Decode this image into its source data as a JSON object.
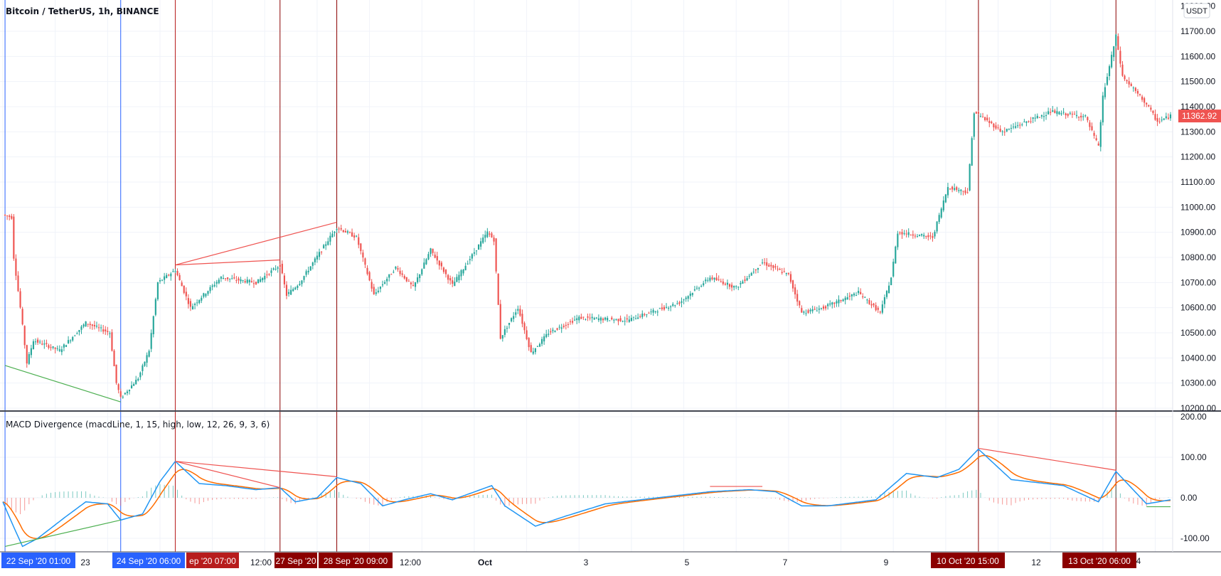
{
  "main_pane": {
    "symbol_title": "Bitcoin / TetherUS, 1h, BINANCE",
    "currency_badge": "USDT",
    "last_price_label": "11362.92",
    "last_price": 11362.92,
    "colors": {
      "up": "#26a69a",
      "down": "#ef5350",
      "grid": "#f0f3fa",
      "axis_text": "#131722",
      "price_tag": "#ef5350"
    }
  },
  "indicator_pane": {
    "title": "MACD Divergence (macdLine, 1, 15, high, low, 12, 26, 9, 3, 6)",
    "colors": {
      "macd": "#2196f3",
      "signal": "#ff6d00",
      "hist_up": "#26a69a",
      "hist_down": "#ef5350"
    }
  },
  "time_axis": {
    "ticks": [
      "23",
      "12:00",
      "12:00",
      "Oct",
      "3",
      "5",
      "7",
      "9",
      "12"
    ],
    "highlight_labels": [
      {
        "text": "22 Sep '20   01:00",
        "color": "#2962ff"
      },
      {
        "text": "24 Sep '20   06:00",
        "color": "#2962ff"
      },
      {
        "text": "ep '20   07:00",
        "color": "#b71c1c"
      },
      {
        "text": "27 Sep '20",
        "color": "#8b0000"
      },
      {
        "text": "28 Sep '20   09:00",
        "color": "#8b0000"
      },
      {
        "text": "10 Oct '20   15:00",
        "color": "#8b0000"
      },
      {
        "text": "13 Oct '20   06:00",
        "color": "#8b0000"
      },
      {
        "text": "4",
        "color": "none"
      }
    ]
  },
  "chart_data": [
    {
      "type": "candlestick",
      "title": "Bitcoin / TetherUS, 1h, BINANCE",
      "y_unit": "USDT",
      "ylim": [
        10200,
        11800
      ],
      "y_ticks": [
        "10200.00",
        "10300.00",
        "10400.00",
        "10500.00",
        "10600.00",
        "10700.00",
        "10800.00",
        "10900.00",
        "11000.00",
        "11100.00",
        "11200.00",
        "11300.00",
        "11400.00",
        "11500.00",
        "11600.00",
        "11700.00"
      ],
      "x_range": [
        "2020-09-22T00:00",
        "2020-10-14T07:00"
      ],
      "price_path_anchors": [
        {
          "t": "2020-09-22T00:00",
          "price": 10970
        },
        {
          "t": "2020-09-22T04:00",
          "price": 10960
        },
        {
          "t": "2020-09-22T05:00",
          "price": 10800
        },
        {
          "t": "2020-09-22T08:00",
          "price": 10600
        },
        {
          "t": "2020-09-22T11:00",
          "price": 10380
        },
        {
          "t": "2020-09-22T14:00",
          "price": 10470
        },
        {
          "t": "2020-09-23T02:00",
          "price": 10430
        },
        {
          "t": "2020-09-23T14:00",
          "price": 10540
        },
        {
          "t": "2020-09-24T01:00",
          "price": 10500
        },
        {
          "t": "2020-09-24T04:00",
          "price": 10300
        },
        {
          "t": "2020-09-24T06:00",
          "price": 10240
        },
        {
          "t": "2020-09-24T14:00",
          "price": 10320
        },
        {
          "t": "2020-09-24T19:00",
          "price": 10430
        },
        {
          "t": "2020-09-24T23:00",
          "price": 10700
        },
        {
          "t": "2020-09-25T07:00",
          "price": 10750
        },
        {
          "t": "2020-09-25T14:00",
          "price": 10600
        },
        {
          "t": "2020-09-26T04:00",
          "price": 10720
        },
        {
          "t": "2020-09-26T20:00",
          "price": 10700
        },
        {
          "t": "2020-09-27T07:00",
          "price": 10770
        },
        {
          "t": "2020-09-27T10:00",
          "price": 10650
        },
        {
          "t": "2020-09-27T16:00",
          "price": 10700
        },
        {
          "t": "2020-09-28T09:00",
          "price": 10920
        },
        {
          "t": "2020-09-28T18:00",
          "price": 10880
        },
        {
          "t": "2020-09-29T02:00",
          "price": 10650
        },
        {
          "t": "2020-09-29T12:00",
          "price": 10760
        },
        {
          "t": "2020-09-29T20:00",
          "price": 10680
        },
        {
          "t": "2020-09-30T04:00",
          "price": 10830
        },
        {
          "t": "2020-09-30T14:00",
          "price": 10690
        },
        {
          "t": "2020-10-01T06:00",
          "price": 10900
        },
        {
          "t": "2020-10-01T09:00",
          "price": 10870
        },
        {
          "t": "2020-10-01T12:00",
          "price": 10480
        },
        {
          "t": "2020-10-01T20:00",
          "price": 10600
        },
        {
          "t": "2020-10-02T02:00",
          "price": 10420
        },
        {
          "t": "2020-10-02T10:00",
          "price": 10500
        },
        {
          "t": "2020-10-03T00:00",
          "price": 10560
        },
        {
          "t": "2020-10-03T22:00",
          "price": 10550
        },
        {
          "t": "2020-10-04T22:00",
          "price": 10620
        },
        {
          "t": "2020-10-05T12:00",
          "price": 10720
        },
        {
          "t": "2020-10-06T00:00",
          "price": 10680
        },
        {
          "t": "2020-10-06T12:00",
          "price": 10780
        },
        {
          "t": "2020-10-07T00:00",
          "price": 10730
        },
        {
          "t": "2020-10-07T06:00",
          "price": 10580
        },
        {
          "t": "2020-10-07T16:00",
          "price": 10600
        },
        {
          "t": "2020-10-08T08:00",
          "price": 10660
        },
        {
          "t": "2020-10-08T18:00",
          "price": 10580
        },
        {
          "t": "2020-10-08T23:00",
          "price": 10720
        },
        {
          "t": "2020-10-09T02:00",
          "price": 10900
        },
        {
          "t": "2020-10-09T18:00",
          "price": 10880
        },
        {
          "t": "2020-10-10T01:00",
          "price": 11080
        },
        {
          "t": "2020-10-10T10:00",
          "price": 11060
        },
        {
          "t": "2020-10-10T13:00",
          "price": 11380
        },
        {
          "t": "2020-10-11T02:00",
          "price": 11300
        },
        {
          "t": "2020-10-12T00:00",
          "price": 11380
        },
        {
          "t": "2020-10-12T16:00",
          "price": 11360
        },
        {
          "t": "2020-10-12T22:00",
          "price": 11240
        },
        {
          "t": "2020-10-13T00:00",
          "price": 11440
        },
        {
          "t": "2020-10-13T06:00",
          "price": 11680
        },
        {
          "t": "2020-10-13T09:00",
          "price": 11520
        },
        {
          "t": "2020-10-13T20:00",
          "price": 11410
        },
        {
          "t": "2020-10-14T01:00",
          "price": 11340
        },
        {
          "t": "2020-10-14T07:00",
          "price": 11362.92
        }
      ],
      "divergence_lines": [
        {
          "color": "#4caf50",
          "from": {
            "t": "2020-09-22T01:00",
            "price": 10370
          },
          "to": {
            "t": "2020-09-24T06:00",
            "price": 10225
          }
        },
        {
          "color": "#ef5350",
          "from": {
            "t": "2020-09-25T07:00",
            "price": 10770
          },
          "to": {
            "t": "2020-09-28T09:00",
            "price": 10940
          }
        },
        {
          "color": "#ef5350",
          "from": {
            "t": "2020-09-25T07:00",
            "price": 10770
          },
          "to": {
            "t": "2020-09-27T07:00",
            "price": 10790
          }
        }
      ],
      "marker_lines": [
        {
          "t": "2020-09-22T01:00",
          "color": "#2962ff"
        },
        {
          "t": "2020-09-24T06:00",
          "color": "#2962ff"
        },
        {
          "t": "2020-09-25T07:00",
          "color": "#b71c1c"
        },
        {
          "t": "2020-09-27T07:00",
          "color": "#8b0000"
        },
        {
          "t": "2020-09-28T09:00",
          "color": "#8b0000"
        },
        {
          "t": "2020-10-10T15:00",
          "color": "#8b0000"
        },
        {
          "t": "2020-10-13T06:00",
          "color": "#8b0000"
        }
      ]
    },
    {
      "type": "line",
      "title": "MACD Divergence (macdLine, 1, 15, high, low, 12, 26, 9, 3, 6)",
      "ylim": [
        -125,
        200
      ],
      "y_ticks": [
        "200.00",
        "100.00",
        "0.00",
        "-100.00"
      ],
      "series": [],
      "macd_anchors": [
        {
          "t": "2020-09-22T00:00",
          "v": -10
        },
        {
          "t": "2020-09-22T04:00",
          "v": -60
        },
        {
          "t": "2020-09-22T09:00",
          "v": -120
        },
        {
          "t": "2020-09-22T16:00",
          "v": -100
        },
        {
          "t": "2020-09-23T04:00",
          "v": -50
        },
        {
          "t": "2020-09-23T14:00",
          "v": -10
        },
        {
          "t": "2020-09-24T00:00",
          "v": -15
        },
        {
          "t": "2020-09-24T06:00",
          "v": -55
        },
        {
          "t": "2020-09-24T16:00",
          "v": -40
        },
        {
          "t": "2020-09-25T00:00",
          "v": 40
        },
        {
          "t": "2020-09-25T07:00",
          "v": 90
        },
        {
          "t": "2020-09-25T18:00",
          "v": 35
        },
        {
          "t": "2020-09-26T06:00",
          "v": 30
        },
        {
          "t": "2020-09-26T20:00",
          "v": 20
        },
        {
          "t": "2020-09-27T07:00",
          "v": 25
        },
        {
          "t": "2020-09-27T14:00",
          "v": -10
        },
        {
          "t": "2020-09-28T00:00",
          "v": 0
        },
        {
          "t": "2020-09-28T09:00",
          "v": 50
        },
        {
          "t": "2020-09-28T20:00",
          "v": 35
        },
        {
          "t": "2020-09-29T06:00",
          "v": -20
        },
        {
          "t": "2020-09-29T16:00",
          "v": -5
        },
        {
          "t": "2020-09-30T04:00",
          "v": 10
        },
        {
          "t": "2020-09-30T14:00",
          "v": -5
        },
        {
          "t": "2020-10-01T08:00",
          "v": 30
        },
        {
          "t": "2020-10-01T14:00",
          "v": -20
        },
        {
          "t": "2020-10-02T04:00",
          "v": -70
        },
        {
          "t": "2020-10-02T18:00",
          "v": -45
        },
        {
          "t": "2020-10-03T12:00",
          "v": -15
        },
        {
          "t": "2020-10-04T12:00",
          "v": 0
        },
        {
          "t": "2020-10-05T12:00",
          "v": 15
        },
        {
          "t": "2020-10-06T06:00",
          "v": 20
        },
        {
          "t": "2020-10-06T18:00",
          "v": 15
        },
        {
          "t": "2020-10-07T06:00",
          "v": -20
        },
        {
          "t": "2020-10-07T18:00",
          "v": -20
        },
        {
          "t": "2020-10-08T16:00",
          "v": -5
        },
        {
          "t": "2020-10-09T06:00",
          "v": 60
        },
        {
          "t": "2020-10-09T20:00",
          "v": 50
        },
        {
          "t": "2020-10-10T06:00",
          "v": 70
        },
        {
          "t": "2020-10-10T15:00",
          "v": 120
        },
        {
          "t": "2020-10-11T06:00",
          "v": 45
        },
        {
          "t": "2020-10-12T06:00",
          "v": 30
        },
        {
          "t": "2020-10-12T22:00",
          "v": -10
        },
        {
          "t": "2020-10-13T06:00",
          "v": 65
        },
        {
          "t": "2020-10-13T20:00",
          "v": -15
        },
        {
          "t": "2020-10-14T07:00",
          "v": -5
        }
      ],
      "divergence_lines": [
        {
          "color": "#4caf50",
          "from": {
            "t": "2020-09-22T01:00",
            "v": -120
          },
          "to": {
            "t": "2020-09-24T06:00",
            "v": -55
          }
        },
        {
          "color": "#ef5350",
          "from": {
            "t": "2020-09-25T07:00",
            "v": 90
          },
          "to": {
            "t": "2020-09-28T09:00",
            "v": 52
          }
        },
        {
          "color": "#ef5350",
          "from": {
            "t": "2020-09-25T07:00",
            "v": 90
          },
          "to": {
            "t": "2020-09-27T07:00",
            "v": 25
          }
        },
        {
          "color": "#ef5350",
          "from": {
            "t": "2020-10-05T12:00",
            "v": 28
          },
          "to": {
            "t": "2020-10-06T12:00",
            "v": 28
          }
        },
        {
          "color": "#ef5350",
          "from": {
            "t": "2020-10-10T15:00",
            "v": 122
          },
          "to": {
            "t": "2020-10-13T06:00",
            "v": 68
          }
        },
        {
          "color": "#4caf50",
          "from": {
            "t": "2020-10-13T20:00",
            "v": -22
          },
          "to": {
            "t": "2020-10-14T07:00",
            "v": -22
          }
        }
      ]
    }
  ]
}
